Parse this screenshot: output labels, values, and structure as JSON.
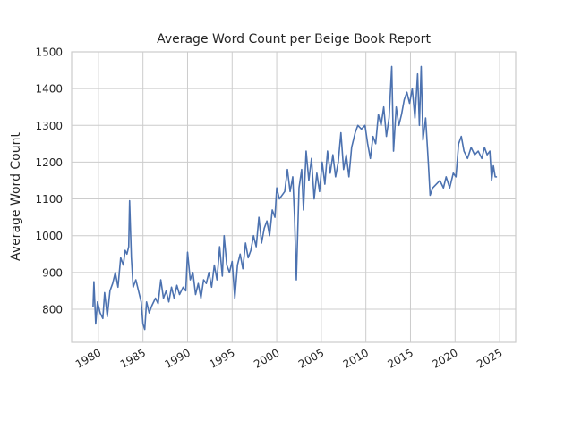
{
  "chart_data": {
    "type": "line",
    "title": "Average Word Count per Beige Book Report",
    "y_label": "Average Word Count",
    "x": [
      1979.4,
      1979.5,
      1979.7,
      1979.9,
      1980.2,
      1980.5,
      1980.7,
      1981.0,
      1981.3,
      1981.6,
      1981.9,
      1982.2,
      1982.5,
      1982.8,
      1983.0,
      1983.2,
      1983.4,
      1983.5,
      1983.7,
      1983.9,
      1984.2,
      1984.5,
      1984.8,
      1985.0,
      1985.2,
      1985.4,
      1985.7,
      1986.0,
      1986.4,
      1986.7,
      1987.0,
      1987.3,
      1987.6,
      1987.9,
      1988.2,
      1988.5,
      1988.8,
      1989.1,
      1989.5,
      1989.8,
      1990.0,
      1990.3,
      1990.6,
      1990.9,
      1991.2,
      1991.5,
      1991.8,
      1992.1,
      1992.4,
      1992.7,
      1993.0,
      1993.3,
      1993.6,
      1993.9,
      1994.1,
      1994.4,
      1994.7,
      1995.0,
      1995.3,
      1995.6,
      1995.9,
      1996.2,
      1996.5,
      1996.8,
      1997.1,
      1997.4,
      1997.7,
      1998.0,
      1998.3,
      1998.6,
      1998.9,
      1999.2,
      1999.5,
      1999.8,
      2000.0,
      2000.3,
      2000.6,
      2000.9,
      2001.2,
      2001.5,
      2001.8,
      2002.0,
      2002.2,
      2002.5,
      2002.8,
      2003.0,
      2003.3,
      2003.6,
      2003.9,
      2004.2,
      2004.5,
      2004.8,
      2005.1,
      2005.4,
      2005.7,
      2006.0,
      2006.3,
      2006.6,
      2006.9,
      2007.2,
      2007.5,
      2007.8,
      2008.1,
      2008.4,
      2008.8,
      2009.1,
      2009.5,
      2009.9,
      2010.2,
      2010.5,
      2010.8,
      2011.1,
      2011.4,
      2011.7,
      2012.0,
      2012.3,
      2012.6,
      2012.9,
      2013.1,
      2013.4,
      2013.7,
      2014.0,
      2014.3,
      2014.6,
      2014.9,
      2015.2,
      2015.5,
      2015.8,
      2016.0,
      2016.2,
      2016.4,
      2016.7,
      2017.0,
      2017.2,
      2017.5,
      2017.9,
      2018.3,
      2018.7,
      2019.0,
      2019.4,
      2019.8,
      2020.1,
      2020.4,
      2020.7,
      2021.0,
      2021.4,
      2021.8,
      2022.2,
      2022.6,
      2023.0,
      2023.3,
      2023.6,
      2023.9,
      2024.1,
      2024.3,
      2024.5,
      2024.7
    ],
    "series": [
      {
        "color": "#4c72b0",
        "values": [
          805,
          875,
          760,
          820,
          790,
          775,
          845,
          780,
          850,
          870,
          900,
          860,
          940,
          920,
          960,
          950,
          970,
          1095,
          940,
          860,
          880,
          850,
          820,
          760,
          745,
          820,
          790,
          810,
          830,
          815,
          880,
          830,
          850,
          820,
          860,
          830,
          865,
          840,
          860,
          850,
          955,
          880,
          900,
          840,
          870,
          830,
          880,
          870,
          900,
          860,
          920,
          880,
          970,
          890,
          1000,
          920,
          900,
          930,
          830,
          920,
          950,
          910,
          980,
          940,
          960,
          1000,
          970,
          1050,
          980,
          1020,
          1040,
          1000,
          1070,
          1050,
          1130,
          1100,
          1110,
          1120,
          1180,
          1120,
          1160,
          1050,
          880,
          1130,
          1180,
          1070,
          1230,
          1150,
          1210,
          1100,
          1170,
          1120,
          1200,
          1140,
          1230,
          1170,
          1220,
          1160,
          1200,
          1280,
          1180,
          1220,
          1160,
          1240,
          1280,
          1300,
          1290,
          1300,
          1250,
          1210,
          1270,
          1250,
          1330,
          1300,
          1350,
          1270,
          1320,
          1460,
          1230,
          1350,
          1300,
          1330,
          1370,
          1390,
          1360,
          1400,
          1320,
          1440,
          1300,
          1460,
          1260,
          1320,
          1200,
          1110,
          1130,
          1140,
          1150,
          1130,
          1160,
          1130,
          1170,
          1160,
          1250,
          1270,
          1230,
          1210,
          1240,
          1220,
          1230,
          1210,
          1240,
          1220,
          1230,
          1150,
          1190,
          1160,
          1160
        ]
      }
    ],
    "xlim": [
      1977,
      2026.8
    ],
    "xticks": [
      1980,
      1985,
      1990,
      1995,
      2000,
      2005,
      2010,
      2015,
      2020,
      2025
    ],
    "ylim": [
      710,
      1500
    ],
    "yticks": [
      800,
      900,
      1000,
      1100,
      1200,
      1300,
      1400,
      1500
    ],
    "grid": true
  }
}
